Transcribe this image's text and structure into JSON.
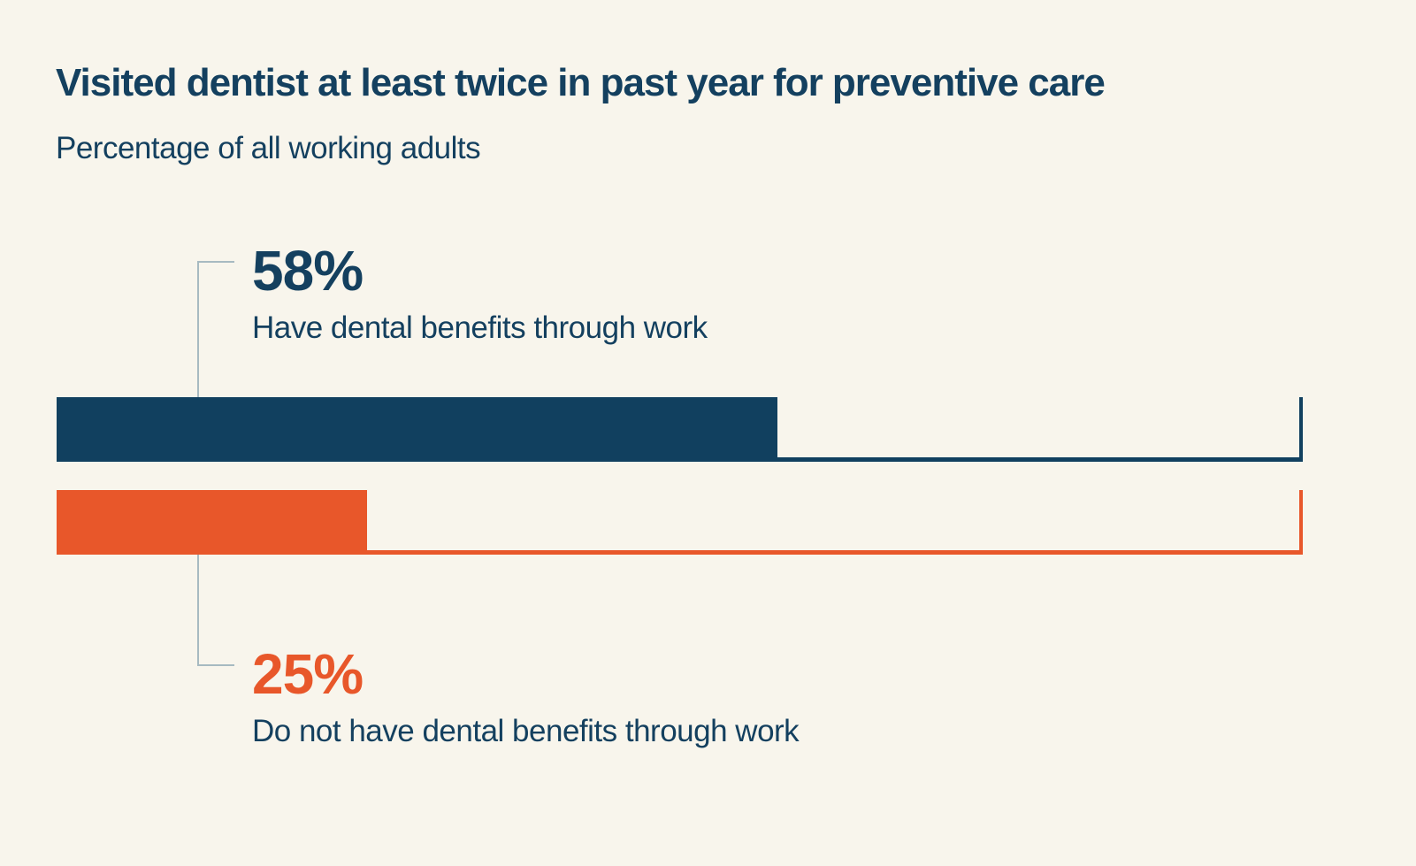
{
  "colors": {
    "background": "#f8f5ec",
    "navy": "#11405f",
    "orange": "#e8572a",
    "connector_line": "#a7bac1",
    "text": "#14405f"
  },
  "chart_data": {
    "type": "bar",
    "orientation": "horizontal",
    "title": "Visited dentist at least twice in past year for preventive care",
    "subtitle": "Percentage of all working adults",
    "categories": [
      "Have dental benefits through work",
      "Do not have dental benefits through work"
    ],
    "values": [
      58,
      25
    ],
    "value_labels": [
      "58%",
      "25%"
    ],
    "unit": "%",
    "xlim": [
      0,
      100
    ],
    "series_colors": [
      "#11405f",
      "#e8572a"
    ],
    "grid": false,
    "legend": false,
    "axis_ticks_visible": false,
    "annotations": [
      {
        "value_label": "58%",
        "label": "Have dental benefits through work",
        "position": "above first bar"
      },
      {
        "value_label": "25%",
        "label": "Do not have dental benefits through work",
        "position": "below second bar"
      }
    ]
  }
}
